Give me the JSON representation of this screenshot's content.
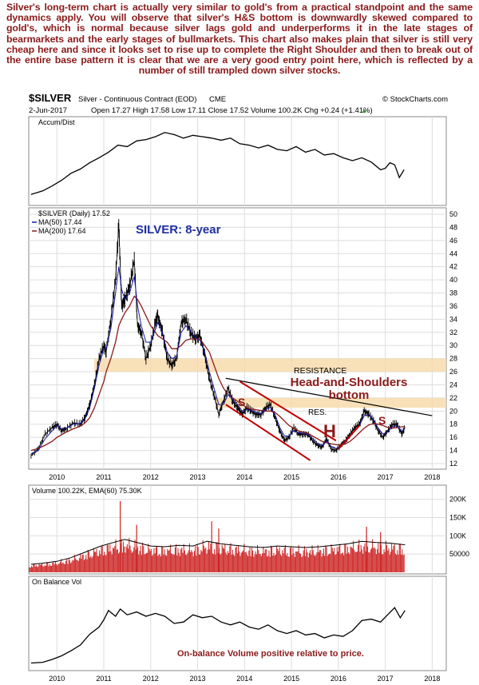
{
  "commentary": "Silver's long-term chart is actually very similar to gold's from a practical standpoint and the same dynamics apply. You will observe that silver's H&S bottom is downwardly skewed compared to gold's, which is normal because silver lags gold and underperforms it in the late stages of bearmarkets and the early stages of bullmarkets. This chart also makes plain that silver is still very cheap here and since it looks set to rise up to complete the Right Shoulder and then to break out of the entire base pattern it is clear that we are a very good entry point here, which is reflected by a number of still trampled down silver stocks.",
  "header": {
    "symbol": "$SILVER",
    "description": "Silver - Continuous Contract (EOD)",
    "exchange": "CME",
    "copyright": "© StockCharts.com",
    "date": "2-Jun-2017",
    "quote": "Open 17.27  High 17.58  Low 17.11  Close 17.52  Volume 100.2K  Chg +0.24 (+1.41%)",
    "quote_arrow": "▲"
  },
  "colors": {
    "price": "#000000",
    "ma50": "#1a1aa0",
    "ma200": "#8b1a1a",
    "volume": "#cc2222",
    "band": "#f6d9a8",
    "annotation": "#8b1a1a",
    "title": "#1f2fa0",
    "frame": "#888888",
    "grid": "#dddddd"
  },
  "chart_data": [
    {
      "type": "line",
      "panel": "accum-dist",
      "legend": "Accum/Dist",
      "x": [
        2009.45,
        2009.7,
        2009.9,
        2010.1,
        2010.3,
        2010.5,
        2010.7,
        2010.9,
        2011.1,
        2011.3,
        2011.5,
        2011.7,
        2011.9,
        2012.1,
        2012.3,
        2012.5,
        2012.7,
        2012.9,
        2013.1,
        2013.3,
        2013.5,
        2013.7,
        2013.9,
        2014.1,
        2014.3,
        2014.5,
        2014.7,
        2014.9,
        2015.1,
        2015.3,
        2015.5,
        2015.7,
        2015.9,
        2016.1,
        2016.3,
        2016.5,
        2016.7,
        2016.9,
        2017.0,
        2017.1,
        2017.2,
        2017.3,
        2017.4
      ],
      "values": [
        0.1,
        0.15,
        0.22,
        0.3,
        0.4,
        0.46,
        0.55,
        0.62,
        0.7,
        0.8,
        0.78,
        0.86,
        0.88,
        0.92,
        0.98,
        0.95,
        0.9,
        0.94,
        0.92,
        0.9,
        0.87,
        0.9,
        0.82,
        0.8,
        0.76,
        0.8,
        0.74,
        0.72,
        0.78,
        0.7,
        0.74,
        0.66,
        0.68,
        0.62,
        0.58,
        0.62,
        0.56,
        0.45,
        0.47,
        0.55,
        0.52,
        0.34,
        0.45
      ]
    },
    {
      "type": "line",
      "panel": "price",
      "legend_price": "$SILVER (Daily) 17.52",
      "legend_ma50": "MA(50) 17.44",
      "legend_ma200": "MA(200) 17.64",
      "title": "SILVER: 8-year",
      "ylim": [
        12,
        50
      ],
      "yticks": [
        12,
        14,
        16,
        18,
        20,
        22,
        24,
        26,
        28,
        30,
        32,
        34,
        36,
        38,
        40,
        42,
        44,
        46,
        48,
        50
      ],
      "x": [
        2009.45,
        2009.6,
        2009.75,
        2009.9,
        2010.0,
        2010.1,
        2010.2,
        2010.35,
        2010.5,
        2010.6,
        2010.7,
        2010.8,
        2010.9,
        2011.0,
        2011.05,
        2011.15,
        2011.25,
        2011.32,
        2011.38,
        2011.45,
        2011.55,
        2011.65,
        2011.72,
        2011.8,
        2011.9,
        2012.0,
        2012.1,
        2012.15,
        2012.25,
        2012.35,
        2012.45,
        2012.55,
        2012.65,
        2012.75,
        2012.85,
        2012.95,
        2013.05,
        2013.15,
        2013.25,
        2013.35,
        2013.45,
        2013.55,
        2013.65,
        2013.75,
        2013.85,
        2013.95,
        2014.05,
        2014.15,
        2014.25,
        2014.35,
        2014.45,
        2014.55,
        2014.65,
        2014.75,
        2014.85,
        2014.95,
        2015.05,
        2015.15,
        2015.25,
        2015.35,
        2015.45,
        2015.55,
        2015.65,
        2015.75,
        2015.85,
        2015.95,
        2016.05,
        2016.15,
        2016.25,
        2016.35,
        2016.45,
        2016.55,
        2016.65,
        2016.75,
        2016.85,
        2016.95,
        2017.05,
        2017.15,
        2017.25,
        2017.35,
        2017.42
      ],
      "series": [
        {
          "key": "price",
          "values": [
            13.2,
            14.2,
            16.5,
            17.5,
            18.0,
            17.0,
            17.3,
            18.2,
            18.0,
            19.0,
            21.0,
            24.0,
            28.0,
            30.0,
            29.0,
            34.0,
            40.0,
            48.5,
            36.0,
            37.0,
            39.0,
            43.0,
            33.0,
            32.0,
            28.0,
            30.0,
            33.5,
            34.5,
            32.0,
            28.0,
            27.0,
            28.0,
            33.5,
            34.0,
            32.0,
            31.0,
            31.5,
            28.5,
            25.0,
            22.5,
            19.5,
            21.5,
            23.5,
            21.5,
            20.5,
            19.5,
            20.5,
            20.0,
            19.5,
            19.5,
            20.5,
            21.0,
            19.0,
            17.0,
            15.5,
            16.0,
            17.5,
            16.5,
            16.5,
            16.5,
            15.5,
            14.8,
            14.5,
            15.8,
            14.2,
            14.0,
            14.8,
            15.5,
            16.5,
            17.5,
            18.0,
            20.0,
            19.5,
            18.5,
            17.0,
            16.0,
            17.0,
            18.0,
            18.0,
            16.5,
            17.5
          ]
        },
        {
          "key": "ma50",
          "values": [
            13.5,
            14.0,
            15.8,
            17.0,
            17.8,
            17.3,
            17.4,
            18.0,
            18.1,
            18.8,
            20.5,
            23.5,
            27.0,
            29.5,
            29.5,
            32.5,
            38.0,
            42.0,
            38.5,
            37.0,
            38.0,
            40.5,
            36.0,
            33.0,
            30.5,
            30.5,
            32.5,
            33.5,
            32.0,
            29.0,
            28.0,
            28.3,
            32.0,
            33.0,
            32.2,
            31.2,
            30.8,
            29.0,
            26.0,
            23.5,
            21.0,
            21.0,
            22.5,
            21.8,
            21.0,
            20.0,
            20.2,
            20.1,
            19.8,
            19.6,
            20.2,
            20.6,
            19.5,
            17.5,
            16.2,
            16.2,
            17.0,
            16.7,
            16.6,
            16.5,
            15.8,
            15.1,
            14.8,
            15.4,
            14.6,
            14.3,
            14.6,
            15.2,
            16.2,
            17.0,
            17.8,
            19.3,
            19.4,
            18.7,
            17.4,
            16.5,
            16.8,
            17.6,
            17.8,
            16.9,
            17.44
          ]
        },
        {
          "key": "ma200",
          "values": [
            14.0,
            14.3,
            14.8,
            15.4,
            16.0,
            16.4,
            16.8,
            17.3,
            17.7,
            18.2,
            19.0,
            20.5,
            22.5,
            24.5,
            26.0,
            28.0,
            30.5,
            33.0,
            34.0,
            35.0,
            36.0,
            37.5,
            37.0,
            36.0,
            34.5,
            33.0,
            32.0,
            31.5,
            31.0,
            30.5,
            29.5,
            29.5,
            30.0,
            30.8,
            31.0,
            31.0,
            31.0,
            30.0,
            29.0,
            27.0,
            25.0,
            23.5,
            22.5,
            22.0,
            21.5,
            21.0,
            20.5,
            20.3,
            20.2,
            20.1,
            20.0,
            20.0,
            19.8,
            19.2,
            18.5,
            17.8,
            17.4,
            17.0,
            16.8,
            16.6,
            16.2,
            15.8,
            15.4,
            15.2,
            15.0,
            14.9,
            14.8,
            15.0,
            15.4,
            16.0,
            16.7,
            17.4,
            17.9,
            18.1,
            18.0,
            17.8,
            17.5,
            17.4,
            17.5,
            17.6,
            17.64
          ]
        }
      ],
      "annotations": {
        "resistance_label": "RESISTANCE",
        "resistance_band": [
          26,
          28
        ],
        "hs_title_line1": "Head-and-Shoulders",
        "hs_title_line2": "bottom",
        "res_label": "RES.",
        "res_band": [
          20.5,
          22
        ],
        "left_shoulder": "S",
        "head": "H",
        "right_shoulder": "S",
        "neckline": {
          "x": [
            2013.6,
            2018.0
          ],
          "y": [
            25.0,
            19.3
          ]
        },
        "channel_upper": {
          "x": [
            2013.9,
            2015.95
          ],
          "y": [
            24.5,
            15.5
          ]
        },
        "channel_lower": {
          "x": [
            2013.6,
            2015.4
          ],
          "y": [
            21.0,
            12.5
          ]
        },
        "rise_line": {
          "x": [
            2016.0,
            2016.45
          ],
          "y": [
            14.2,
            17.8
          ]
        }
      }
    },
    {
      "type": "bar",
      "panel": "volume",
      "legend": "Volume 100.22K, EMA(60) 75.30K",
      "yticks": [
        50000,
        100000,
        150000,
        200000
      ],
      "ytick_labels": [
        "50000",
        "100K",
        "150K",
        "200K"
      ],
      "ylim": [
        0,
        230000
      ],
      "x": [
        2009.45,
        2009.7,
        2010.0,
        2010.3,
        2010.6,
        2010.9,
        2011.1,
        2011.3,
        2011.45,
        2011.7,
        2012.0,
        2012.3,
        2012.6,
        2012.9,
        2013.2,
        2013.5,
        2013.8,
        2014.1,
        2014.4,
        2014.7,
        2015.0,
        2015.3,
        2015.6,
        2015.9,
        2016.2,
        2016.5,
        2016.8,
        2017.1,
        2017.42
      ],
      "values": [
        22000,
        25000,
        30000,
        40000,
        55000,
        70000,
        78000,
        85000,
        90000,
        82000,
        72000,
        70000,
        74000,
        72000,
        85000,
        78000,
        74000,
        70000,
        68000,
        72000,
        70000,
        68000,
        70000,
        74000,
        78000,
        85000,
        82000,
        80000,
        75300
      ],
      "spikes": [
        {
          "x": 2011.35,
          "value": 195000
        },
        {
          "x": 2011.7,
          "value": 130000
        },
        {
          "x": 2013.3,
          "value": 140000
        },
        {
          "x": 2013.45,
          "value": 120000
        },
        {
          "x": 2016.6,
          "value": 125000
        },
        {
          "x": 2016.9,
          "value": 110000
        }
      ]
    },
    {
      "type": "line",
      "panel": "on-balance-volume",
      "legend": "On Balance Vol",
      "annotation": "On-balance Volume positive relative to price.",
      "x": [
        2009.45,
        2009.7,
        2009.9,
        2010.1,
        2010.3,
        2010.5,
        2010.7,
        2010.9,
        2011.0,
        2011.1,
        2011.25,
        2011.35,
        2011.5,
        2011.7,
        2011.9,
        2012.1,
        2012.3,
        2012.5,
        2012.7,
        2012.9,
        2013.1,
        2013.3,
        2013.5,
        2013.7,
        2013.9,
        2014.1,
        2014.3,
        2014.5,
        2014.7,
        2014.9,
        2015.1,
        2015.3,
        2015.5,
        2015.7,
        2015.9,
        2016.1,
        2016.3,
        2016.5,
        2016.7,
        2016.9,
        2017.05,
        2017.2,
        2017.32,
        2017.42
      ],
      "values": [
        0.05,
        0.06,
        0.1,
        0.15,
        0.22,
        0.3,
        0.45,
        0.55,
        0.65,
        0.78,
        0.7,
        0.8,
        0.72,
        0.76,
        0.7,
        0.74,
        0.7,
        0.6,
        0.62,
        0.72,
        0.68,
        0.7,
        0.62,
        0.58,
        0.62,
        0.55,
        0.52,
        0.58,
        0.5,
        0.46,
        0.5,
        0.44,
        0.46,
        0.4,
        0.44,
        0.42,
        0.5,
        0.64,
        0.66,
        0.62,
        0.72,
        0.82,
        0.68,
        0.78
      ]
    }
  ],
  "x_axis": {
    "ticks": [
      2010,
      2011,
      2012,
      2013,
      2014,
      2015,
      2016,
      2017,
      2018
    ],
    "xlim": [
      2009.4,
      2018.3
    ]
  }
}
